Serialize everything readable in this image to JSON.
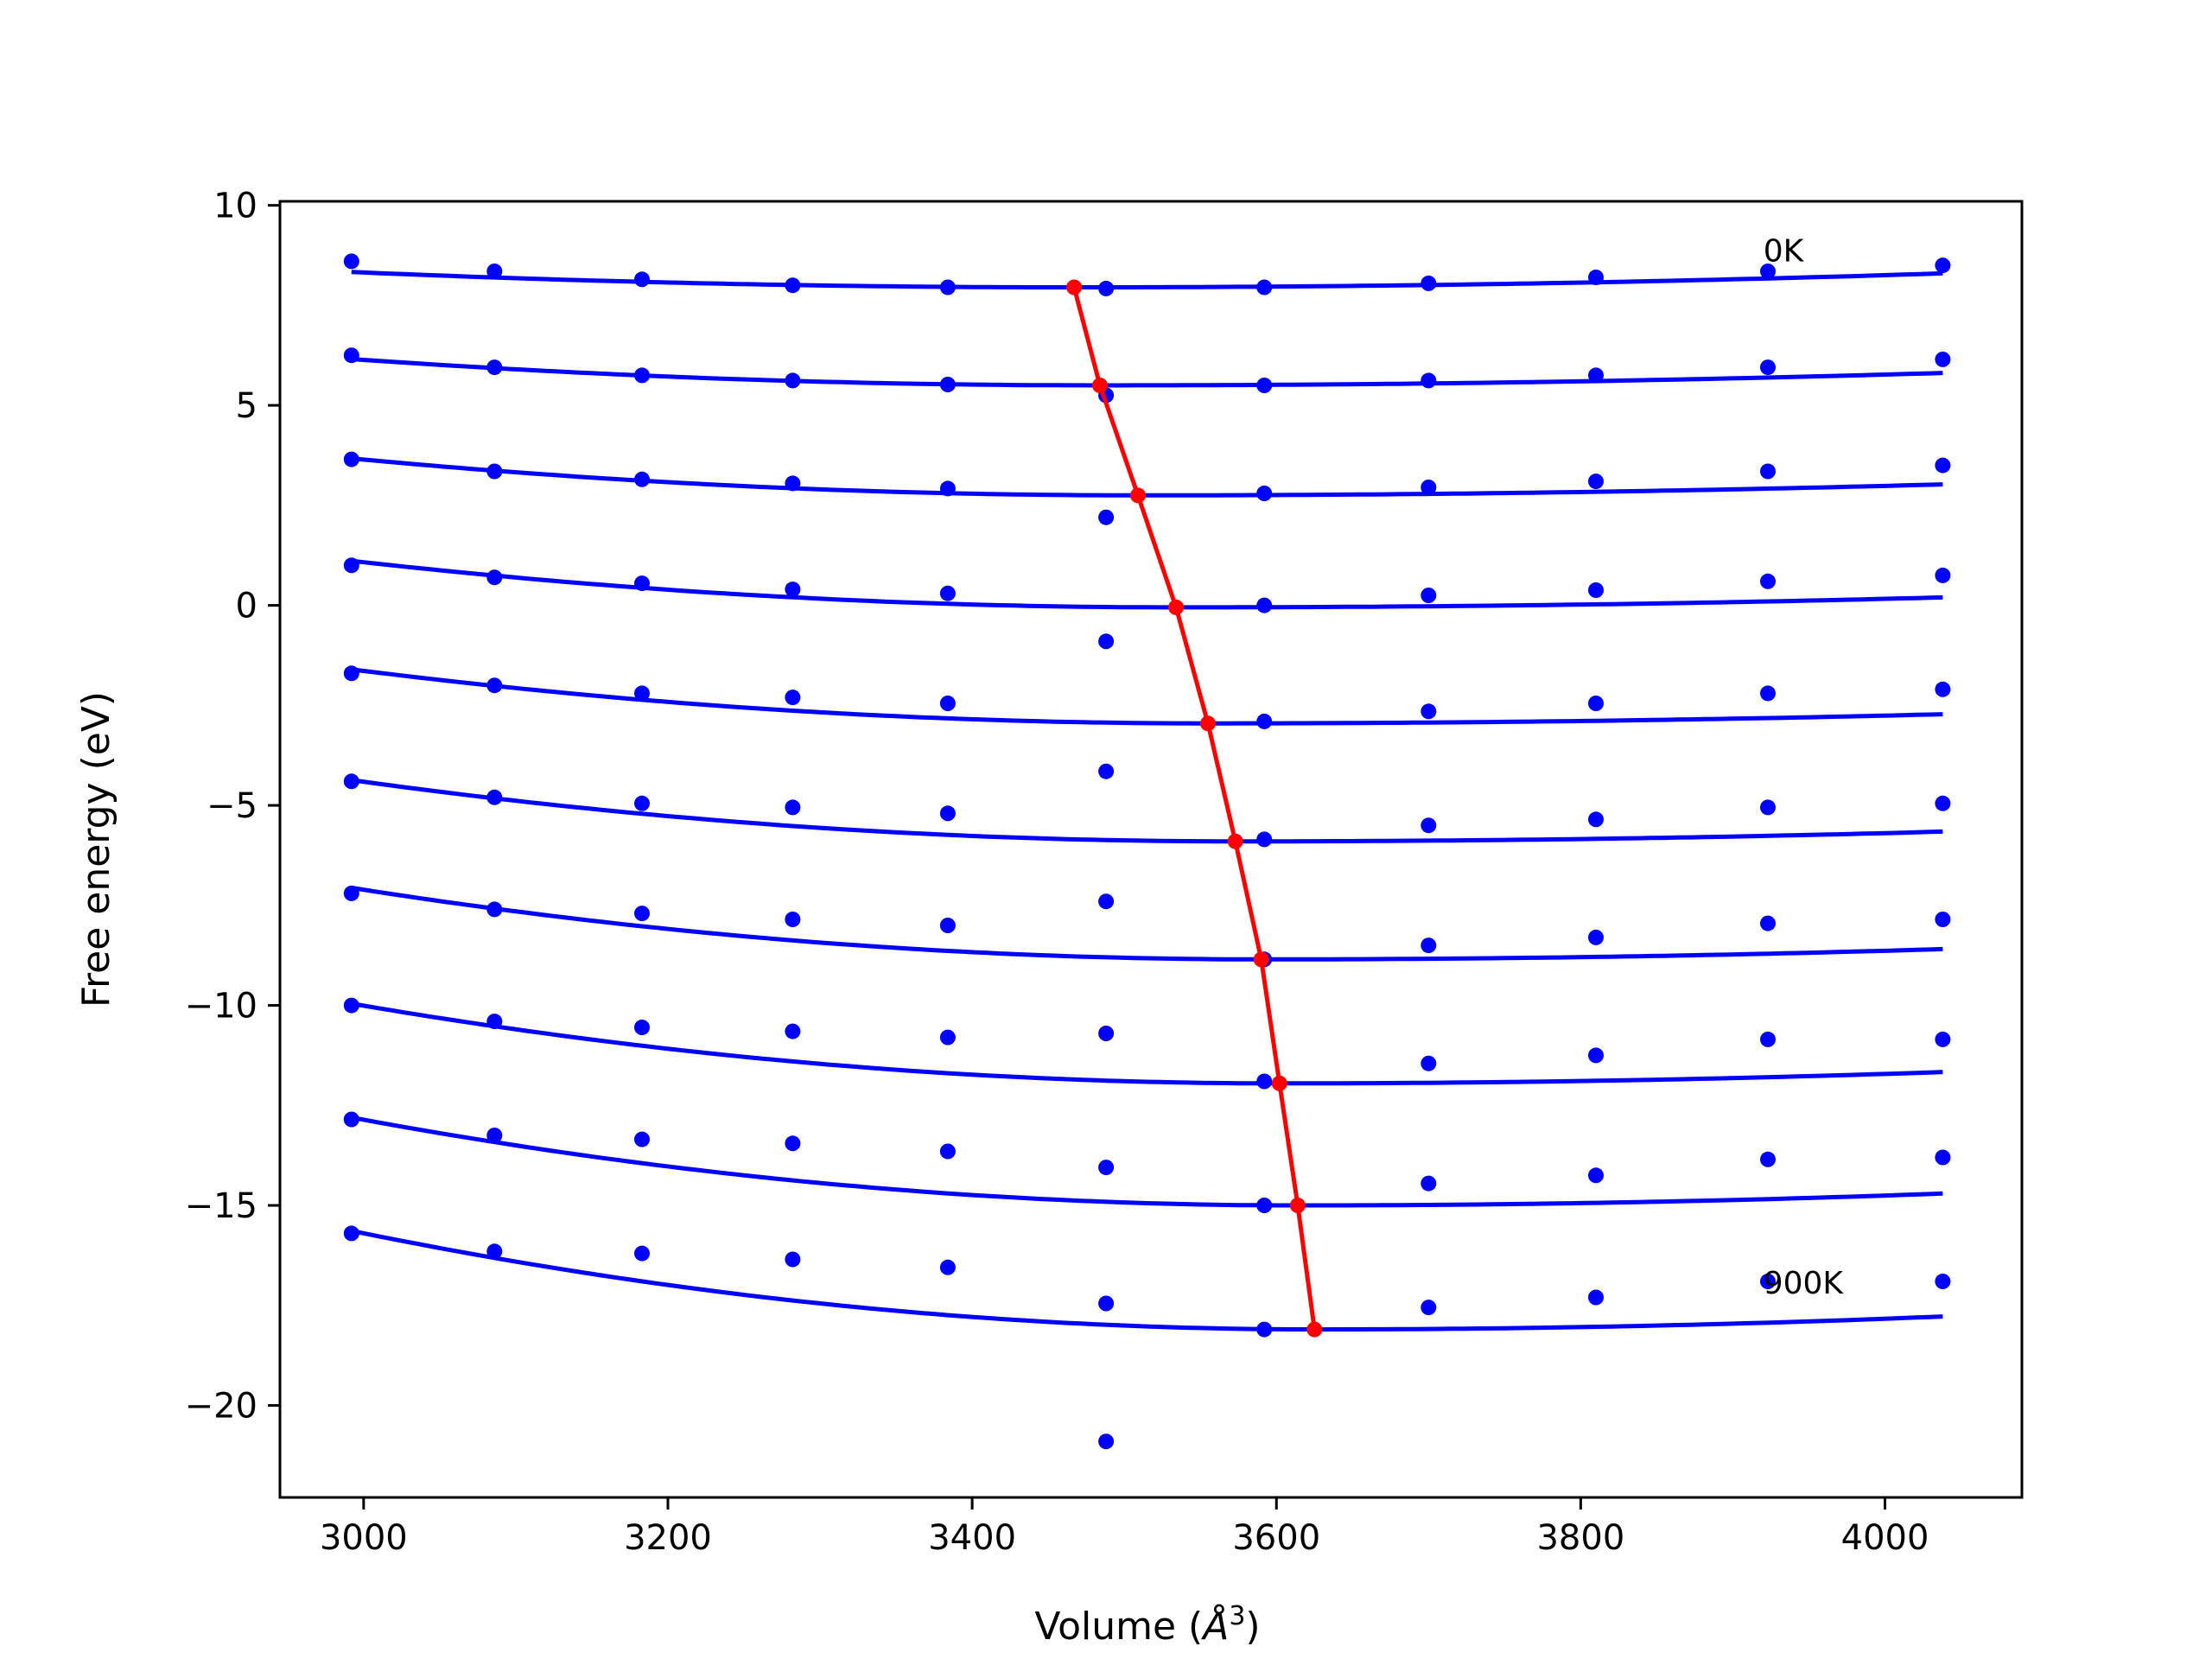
{
  "chart_data": {
    "type": "line",
    "xlabel": "Volume (Å³)",
    "xlabel_main": "Volume (",
    "xlabel_unit": "Å",
    "xlabel_exp": "3",
    "xlabel_close": ")",
    "ylabel": "Free energy (eV)",
    "xlim": [
      2945,
      4090
    ],
    "ylim": [
      -22.3,
      10.1
    ],
    "xticks": [
      3000,
      3200,
      3400,
      3600,
      3800,
      4000
    ],
    "xtick_labels": [
      "3000",
      "3200",
      "3400",
      "3600",
      "3800",
      "4000"
    ],
    "yticks": [
      10,
      5,
      0,
      -5,
      -10,
      -15,
      -20
    ],
    "ytick_labels": [
      "10",
      "5",
      "0",
      "−5",
      "−10",
      "−15",
      "−20"
    ],
    "grid": false,
    "annotations": [
      {
        "text": "0K",
        "x": 3920,
        "y": 8.6
      },
      {
        "text": "900K",
        "x": 3920,
        "y": -17.2
      }
    ],
    "volumes": [
      2992,
      3086,
      3183,
      3282,
      3384,
      3488,
      3592,
      3700,
      3810,
      3923,
      4038
    ],
    "points": [
      [
        8.6,
        8.35,
        8.15,
        8.0,
        7.95,
        7.92,
        7.95,
        8.05,
        8.2,
        8.35,
        8.5
      ],
      [
        6.25,
        5.95,
        5.75,
        5.62,
        5.52,
        5.25,
        5.5,
        5.62,
        5.75,
        5.95,
        6.15
      ],
      [
        3.65,
        3.35,
        3.15,
        3.05,
        2.92,
        2.2,
        2.8,
        2.95,
        3.1,
        3.35,
        3.5
      ],
      [
        1.0,
        0.7,
        0.55,
        0.4,
        0.3,
        -0.9,
        0.0,
        0.25,
        0.38,
        0.6,
        0.75
      ],
      [
        -1.7,
        -2.0,
        -2.2,
        -2.3,
        -2.45,
        -4.15,
        -2.9,
        -2.65,
        -2.45,
        -2.2,
        -2.1
      ],
      [
        -4.4,
        -4.8,
        -4.95,
        -5.05,
        -5.2,
        -7.4,
        -5.85,
        -5.5,
        -5.35,
        -5.05,
        -4.95
      ],
      [
        -7.2,
        -7.6,
        -7.7,
        -7.85,
        -8.0,
        -10.7,
        -8.85,
        -8.5,
        -8.3,
        -7.95,
        -7.85
      ],
      [
        -10.0,
        -10.4,
        -10.55,
        -10.65,
        -10.8,
        -14.05,
        -11.9,
        -11.45,
        -11.25,
        -10.85,
        -10.85
      ],
      [
        -12.85,
        -13.25,
        -13.35,
        -13.45,
        -13.65,
        -17.45,
        -15.0,
        -14.45,
        -14.25,
        -13.85,
        -13.8
      ],
      [
        -15.7,
        -16.15,
        -16.2,
        -16.35,
        -16.55,
        -20.9,
        -18.1,
        -17.55,
        -17.3,
        -16.9,
        -16.9
      ]
    ],
    "fit_curves": [
      {
        "vmin": 3467,
        "fmin": 7.95,
        "a_left": 1.7e-06,
        "a_right": 1.07e-06
      },
      {
        "vmin": 3484,
        "fmin": 5.5,
        "a_left": 2.72e-06,
        "a_right": 1.01e-06
      },
      {
        "vmin": 3509,
        "fmin": 2.75,
        "a_left": 3.45e-06,
        "a_right": 9.8e-07
      },
      {
        "vmin": 3534,
        "fmin": -0.05,
        "a_left": 3.96e-06,
        "a_right": 9.8e-07
      },
      {
        "vmin": 3555,
        "fmin": -2.95,
        "a_left": 4.26e-06,
        "a_right": 9.8e-07
      },
      {
        "vmin": 3573,
        "fmin": -5.9,
        "a_left": 4.54e-06,
        "a_right": 1.13e-06
      },
      {
        "vmin": 3590,
        "fmin": -8.85,
        "a_left": 5e-06,
        "a_right": 1.28e-06
      },
      {
        "vmin": 3602,
        "fmin": -11.95,
        "a_left": 5.36e-06,
        "a_right": 1.5e-06
      },
      {
        "vmin": 3614,
        "fmin": -15.0,
        "a_left": 5.68e-06,
        "a_right": 1.65e-06
      },
      {
        "vmin": 3625,
        "fmin": -18.1,
        "a_left": 6.15e-06,
        "a_right": 1.9e-06
      }
    ],
    "minima_line": {
      "x": [
        3467,
        3484,
        3509,
        3534,
        3555,
        3573,
        3590,
        3602,
        3614,
        3625
      ],
      "y": [
        7.95,
        5.5,
        2.75,
        -0.05,
        -2.95,
        -5.9,
        -8.85,
        -11.95,
        -15.0,
        -18.1
      ]
    },
    "colors": {
      "points": "#0000ff",
      "fit": "#0000ff",
      "minima": "#ff0000",
      "axes": "#000000"
    }
  }
}
